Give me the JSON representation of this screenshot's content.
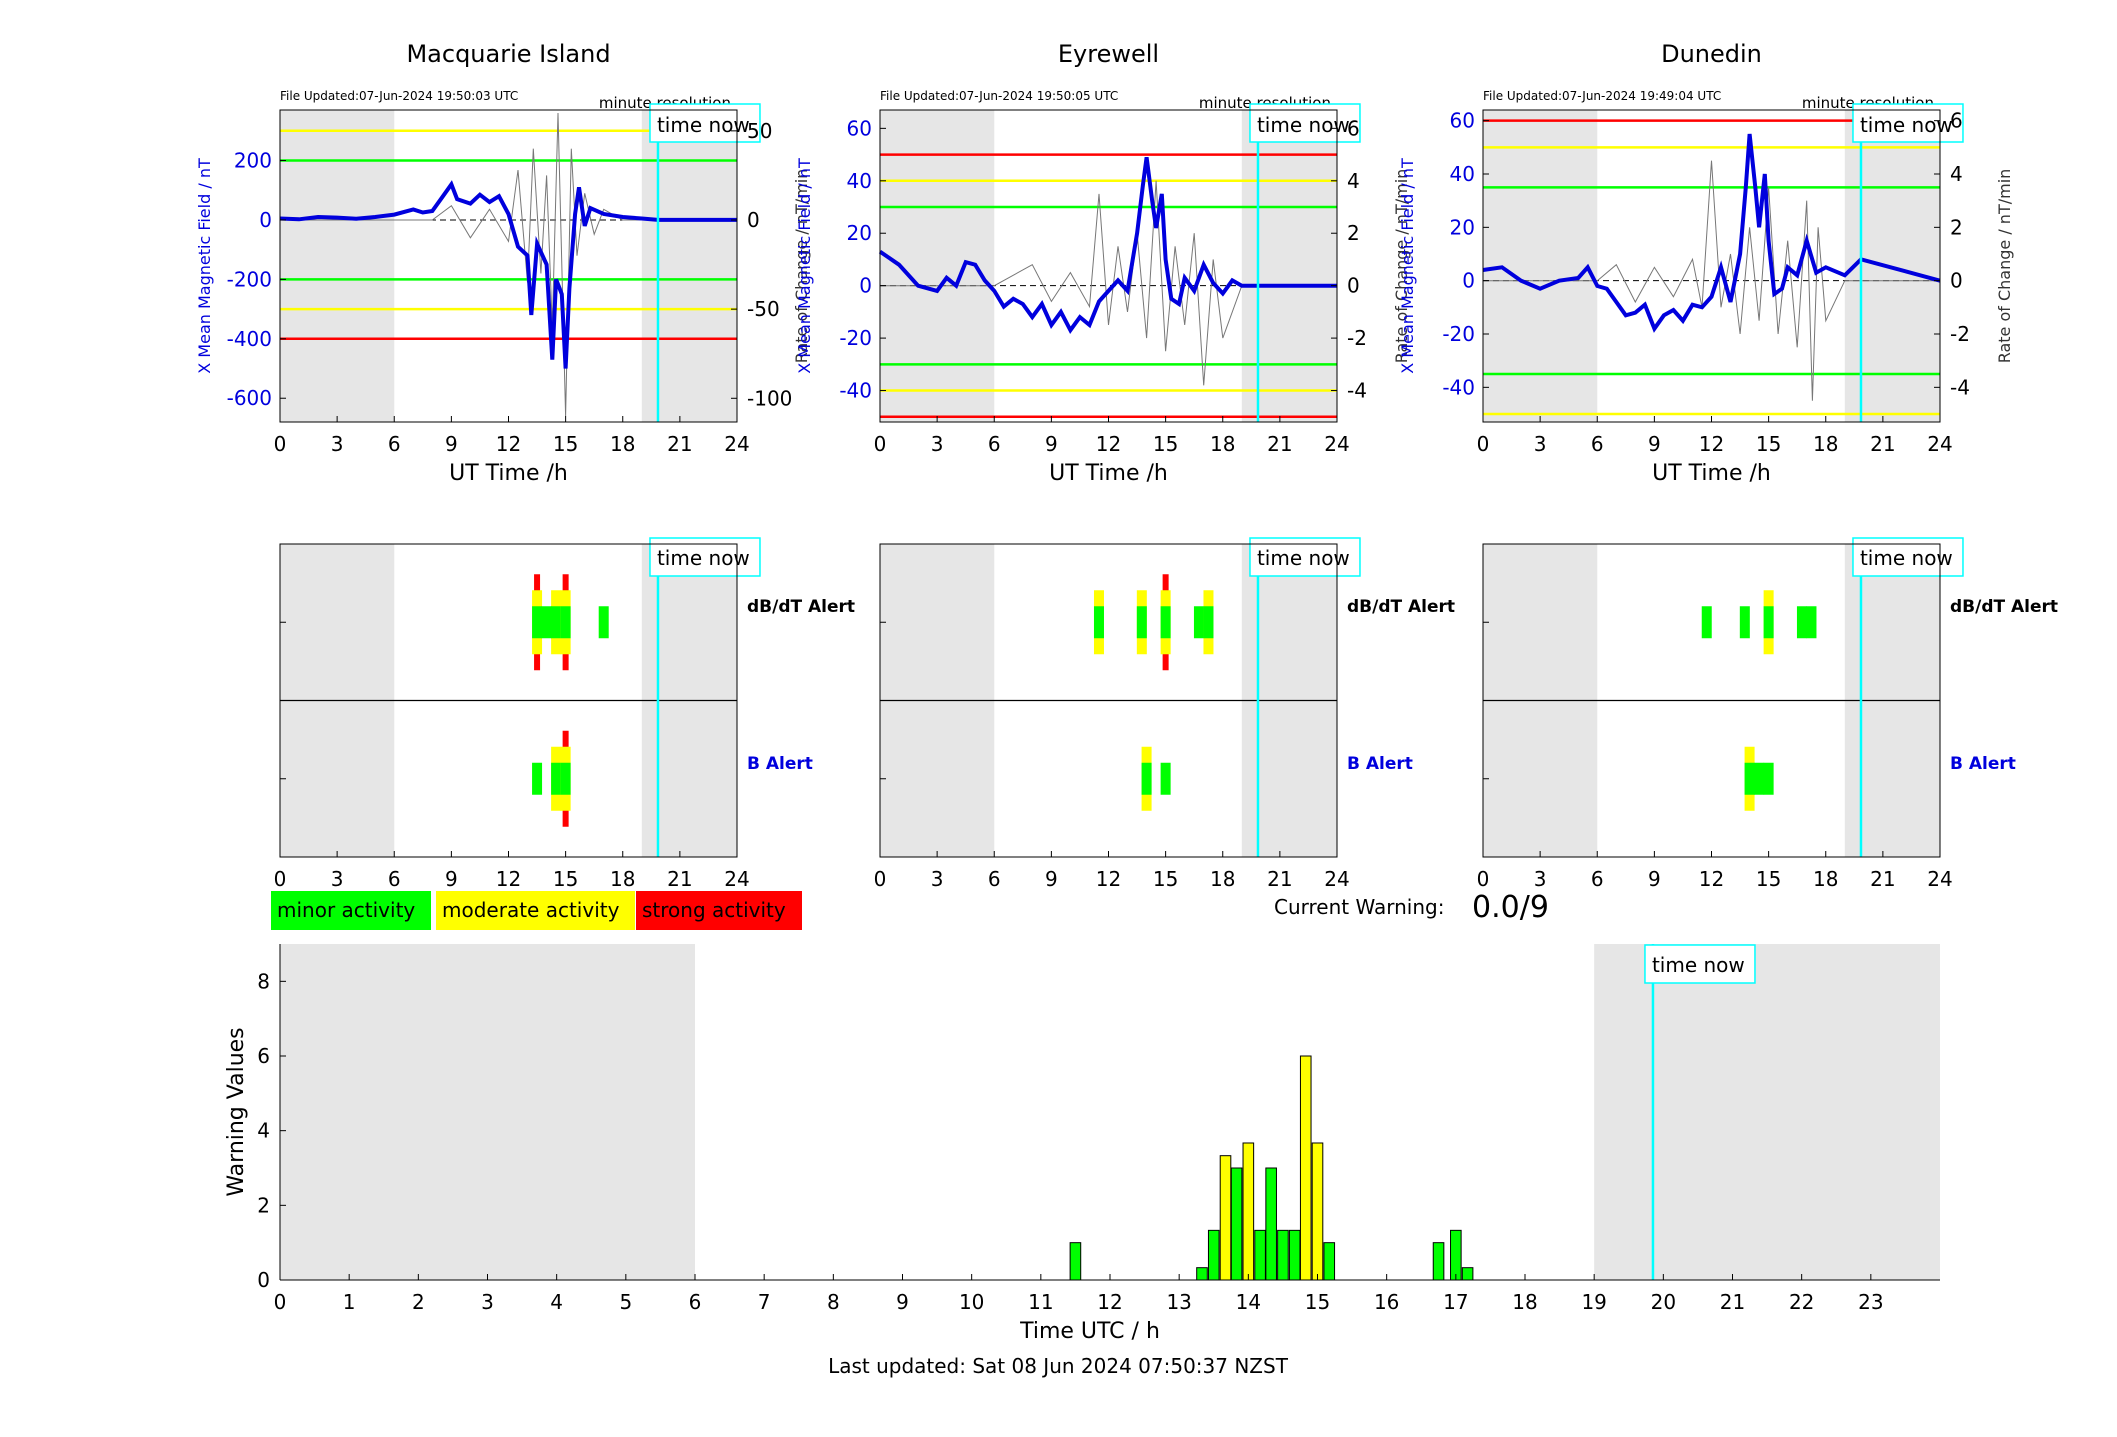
{
  "stations": [
    {
      "name": "Macquarie Island",
      "file_updated": "File Updated:07-Jun-2024 19:50:03 UTC",
      "resolution": "minute resolution",
      "time_now_label": "time now",
      "ylabel_left": "X Mean Magnetic Field / nT",
      "ylabel_right": "Rate of Change / nT/min",
      "xlabel": "UT Time /h",
      "ylim_left": [
        -680,
        370
      ],
      "ylim_right": [
        -113.3,
        61.7
      ],
      "yticks_left": [
        -600,
        -400,
        -200,
        0,
        200
      ],
      "yticks_right": [
        -100,
        -50,
        0,
        50
      ],
      "thresholds": [
        {
          "value": 300,
          "color": "#ffff00"
        },
        {
          "value": 200,
          "color": "#00ff00"
        },
        {
          "value": -200,
          "color": "#00ff00"
        },
        {
          "value": -300,
          "color": "#ffff00"
        },
        {
          "value": -400,
          "color": "#ff0000"
        }
      ],
      "field_series": [
        [
          0,
          5
        ],
        [
          1,
          2
        ],
        [
          2,
          10
        ],
        [
          3,
          8
        ],
        [
          4,
          4
        ],
        [
          5,
          10
        ],
        [
          6,
          18
        ],
        [
          7,
          35
        ],
        [
          7.5,
          25
        ],
        [
          8,
          30
        ],
        [
          8.5,
          75
        ],
        [
          9,
          120
        ],
        [
          9.3,
          70
        ],
        [
          10,
          55
        ],
        [
          10.5,
          85
        ],
        [
          11,
          60
        ],
        [
          11.5,
          80
        ],
        [
          12,
          20
        ],
        [
          12.5,
          -90
        ],
        [
          13,
          -120
        ],
        [
          13.2,
          -320
        ],
        [
          13.5,
          -80
        ],
        [
          14,
          -150
        ],
        [
          14.3,
          -470
        ],
        [
          14.5,
          -200
        ],
        [
          14.8,
          -250
        ],
        [
          15,
          -500
        ],
        [
          15.2,
          -230
        ],
        [
          15.5,
          20
        ],
        [
          15.7,
          110
        ],
        [
          16,
          -20
        ],
        [
          16.3,
          40
        ],
        [
          17,
          20
        ],
        [
          18,
          10
        ],
        [
          19,
          5
        ],
        [
          19.85,
          0
        ],
        [
          24,
          0
        ]
      ],
      "rate_series": [
        [
          0,
          0
        ],
        [
          8,
          0
        ],
        [
          9,
          8
        ],
        [
          10,
          -10
        ],
        [
          11,
          6
        ],
        [
          12,
          -12
        ],
        [
          12.5,
          28
        ],
        [
          13,
          -35
        ],
        [
          13.3,
          40
        ],
        [
          13.7,
          -30
        ],
        [
          14,
          25
        ],
        [
          14.3,
          -60
        ],
        [
          14.6,
          60
        ],
        [
          15,
          -110
        ],
        [
          15.3,
          40
        ],
        [
          15.6,
          -20
        ],
        [
          16,
          15
        ],
        [
          16.5,
          -8
        ],
        [
          17,
          6
        ],
        [
          18,
          0
        ],
        [
          24,
          0
        ]
      ],
      "alerts_dbdt": [
        {
          "t": 13.5,
          "level": "strong"
        },
        {
          "t": 14.5,
          "level": "moderate"
        },
        {
          "t": 14.0,
          "level": "minor"
        },
        {
          "t": 15.0,
          "level": "strong"
        },
        {
          "t": 17.0,
          "level": "minor"
        }
      ],
      "alerts_b": [
        {
          "t": 13.5,
          "level": "minor"
        },
        {
          "t": 14.5,
          "level": "moderate"
        },
        {
          "t": 15.0,
          "level": "strong"
        }
      ]
    },
    {
      "name": "Eyrewell",
      "file_updated": "File Updated:07-Jun-2024 19:50:05 UTC",
      "resolution": "minute resolution",
      "time_now_label": "time now",
      "ylabel_left": "X Mean Magnetic Field / nT",
      "ylabel_right": "Rate of Change / nT/min",
      "xlabel": "UT Time /h",
      "ylim_left": [
        -52,
        67
      ],
      "ylim_right": [
        -5.2,
        6.7
      ],
      "yticks_left": [
        -40,
        -20,
        0,
        20,
        40,
        60
      ],
      "yticks_right": [
        -4,
        -2,
        0,
        2,
        4,
        6
      ],
      "thresholds": [
        {
          "value": 50,
          "color": "#ff0000"
        },
        {
          "value": 40,
          "color": "#ffff00"
        },
        {
          "value": 30,
          "color": "#00ff00"
        },
        {
          "value": -30,
          "color": "#00ff00"
        },
        {
          "value": -40,
          "color": "#ffff00"
        },
        {
          "value": -50,
          "color": "#ff0000"
        }
      ],
      "field_series": [
        [
          0,
          13
        ],
        [
          1,
          8
        ],
        [
          2,
          0
        ],
        [
          3,
          -2
        ],
        [
          3.5,
          3
        ],
        [
          4,
          0
        ],
        [
          4.5,
          9
        ],
        [
          5,
          8
        ],
        [
          5.5,
          2
        ],
        [
          6,
          -2
        ],
        [
          6.5,
          -8
        ],
        [
          7,
          -5
        ],
        [
          7.5,
          -7
        ],
        [
          8,
          -12
        ],
        [
          8.5,
          -7
        ],
        [
          9,
          -15
        ],
        [
          9.5,
          -10
        ],
        [
          10,
          -17
        ],
        [
          10.5,
          -12
        ],
        [
          11,
          -15
        ],
        [
          11.5,
          -6
        ],
        [
          12,
          -2
        ],
        [
          12.5,
          2
        ],
        [
          13,
          -2
        ],
        [
          13.5,
          20
        ],
        [
          13.8,
          38
        ],
        [
          14,
          49
        ],
        [
          14.3,
          32
        ],
        [
          14.5,
          22
        ],
        [
          14.8,
          35
        ],
        [
          15,
          10
        ],
        [
          15.3,
          -5
        ],
        [
          15.7,
          -7
        ],
        [
          16,
          3
        ],
        [
          16.5,
          -2
        ],
        [
          17,
          8
        ],
        [
          17.5,
          1
        ],
        [
          18,
          -3
        ],
        [
          18.5,
          2
        ],
        [
          19,
          0
        ],
        [
          19.85,
          0
        ],
        [
          24,
          0
        ]
      ],
      "rate_series": [
        [
          0,
          0
        ],
        [
          6,
          0
        ],
        [
          8,
          0.8
        ],
        [
          9,
          -0.6
        ],
        [
          10,
          0.5
        ],
        [
          11,
          -0.8
        ],
        [
          11.5,
          3.5
        ],
        [
          12,
          -1.5
        ],
        [
          12.5,
          1.5
        ],
        [
          13,
          -1
        ],
        [
          13.5,
          2
        ],
        [
          14,
          -2
        ],
        [
          14.5,
          4
        ],
        [
          15,
          -2.5
        ],
        [
          15.5,
          1.5
        ],
        [
          16,
          -1.5
        ],
        [
          16.5,
          2
        ],
        [
          17,
          -3.8
        ],
        [
          17.5,
          1
        ],
        [
          18,
          -2
        ],
        [
          19,
          0
        ],
        [
          24,
          0
        ]
      ],
      "alerts_dbdt": [
        {
          "t": 11.5,
          "level": "moderate"
        },
        {
          "t": 13.75,
          "level": "moderate"
        },
        {
          "t": 15.0,
          "level": "strong"
        },
        {
          "t": 16.75,
          "level": "minor"
        },
        {
          "t": 17.25,
          "level": "moderate"
        }
      ],
      "alerts_b": [
        {
          "t": 14.0,
          "level": "moderate"
        },
        {
          "t": 15.0,
          "level": "minor"
        }
      ]
    },
    {
      "name": "Dunedin",
      "file_updated": "File Updated:07-Jun-2024 19:49:04 UTC",
      "resolution": "minute resolution",
      "time_now_label": "time now",
      "ylabel_left": "X Mean Magnetic Field / nT",
      "ylabel_right": "Rate of Change / nT/min",
      "xlabel": "UT Time /h",
      "ylim_left": [
        -53,
        64
      ],
      "ylim_right": [
        -5.3,
        6.4
      ],
      "yticks_left": [
        -40,
        -20,
        0,
        20,
        40,
        60
      ],
      "yticks_right": [
        -4,
        -2,
        0,
        2,
        4,
        6
      ],
      "thresholds": [
        {
          "value": 60,
          "color": "#ff0000"
        },
        {
          "value": 50,
          "color": "#ffff00"
        },
        {
          "value": 35,
          "color": "#00ff00"
        },
        {
          "value": -35,
          "color": "#00ff00"
        },
        {
          "value": -50,
          "color": "#ffff00"
        }
      ],
      "field_series": [
        [
          0,
          4
        ],
        [
          1,
          5
        ],
        [
          2,
          0
        ],
        [
          3,
          -3
        ],
        [
          4,
          0
        ],
        [
          5,
          1
        ],
        [
          5.5,
          5
        ],
        [
          6,
          -2
        ],
        [
          6.5,
          -3
        ],
        [
          7,
          -8
        ],
        [
          7.5,
          -13
        ],
        [
          8,
          -12
        ],
        [
          8.5,
          -9
        ],
        [
          9,
          -18
        ],
        [
          9.5,
          -13
        ],
        [
          10,
          -11
        ],
        [
          10.5,
          -15
        ],
        [
          11,
          -9
        ],
        [
          11.5,
          -10
        ],
        [
          12,
          -6
        ],
        [
          12.5,
          5
        ],
        [
          13,
          -8
        ],
        [
          13.5,
          10
        ],
        [
          13.8,
          35
        ],
        [
          14,
          55
        ],
        [
          14.3,
          35
        ],
        [
          14.5,
          20
        ],
        [
          14.8,
          40
        ],
        [
          15,
          15
        ],
        [
          15.3,
          -5
        ],
        [
          15.7,
          -3
        ],
        [
          16,
          5
        ],
        [
          16.5,
          2
        ],
        [
          17,
          15
        ],
        [
          17.5,
          3
        ],
        [
          18,
          5
        ],
        [
          19,
          2
        ],
        [
          19.85,
          8
        ],
        [
          24,
          0
        ]
      ],
      "rate_series": [
        [
          0,
          0
        ],
        [
          6,
          0
        ],
        [
          7,
          0.6
        ],
        [
          8,
          -0.8
        ],
        [
          9,
          0.5
        ],
        [
          10,
          -0.6
        ],
        [
          11,
          0.8
        ],
        [
          11.5,
          -1
        ],
        [
          12,
          4.5
        ],
        [
          12.5,
          -1
        ],
        [
          13,
          1
        ],
        [
          13.5,
          -2
        ],
        [
          14,
          2
        ],
        [
          14.5,
          -1.5
        ],
        [
          15,
          3.5
        ],
        [
          15.5,
          -2
        ],
        [
          16,
          1.5
        ],
        [
          16.5,
          -2.5
        ],
        [
          17,
          3
        ],
        [
          17.3,
          -4.5
        ],
        [
          17.6,
          2
        ],
        [
          18,
          -1.5
        ],
        [
          19,
          0
        ],
        [
          24,
          0
        ]
      ],
      "alerts_dbdt": [
        {
          "t": 11.75,
          "level": "minor"
        },
        {
          "t": 13.75,
          "level": "minor"
        },
        {
          "t": 15.0,
          "level": "moderate"
        },
        {
          "t": 16.75,
          "level": "minor"
        },
        {
          "t": 17.25,
          "level": "minor"
        }
      ],
      "alerts_b": [
        {
          "t": 14.0,
          "level": "moderate"
        },
        {
          "t": 14.5,
          "level": "minor"
        },
        {
          "t": 15.0,
          "level": "minor"
        }
      ]
    }
  ],
  "alert_labels": {
    "dbdt": "dB/dT Alert",
    "b": "B Alert"
  },
  "legend": {
    "minor": "minor activity",
    "moderate": "moderate activity",
    "strong": "strong activity"
  },
  "level_colors": {
    "minor": "#00ff00",
    "moderate": "#ffff00",
    "strong": "#ff0000",
    "now": "#00ffff"
  },
  "time_axis_ticks": [
    0,
    3,
    6,
    9,
    12,
    15,
    18,
    21,
    24
  ],
  "night_shade_hours": [
    [
      0,
      6
    ],
    [
      19,
      24
    ]
  ],
  "time_now_hour": 19.85,
  "current_warning": {
    "label": "Current Warning:",
    "value": "0.0/9"
  },
  "chart_data": {
    "type": "bar",
    "title": "",
    "xlabel": "Time UTC / h",
    "ylabel": "Warning Values",
    "xlim": [
      0,
      24
    ],
    "ylim": [
      0,
      9
    ],
    "xticks": [
      0,
      1,
      2,
      3,
      4,
      5,
      6,
      7,
      8,
      9,
      10,
      11,
      12,
      13,
      14,
      15,
      16,
      17,
      18,
      19,
      20,
      21,
      22,
      23
    ],
    "yticks": [
      0,
      2,
      4,
      6,
      8
    ],
    "time_now_label": "time now",
    "bars": [
      {
        "x": 11.5,
        "value": 1,
        "level": "minor"
      },
      {
        "x": 13.33,
        "value": 0.33,
        "level": "minor"
      },
      {
        "x": 13.5,
        "value": 1.33,
        "level": "minor"
      },
      {
        "x": 13.67,
        "value": 3.33,
        "level": "moderate"
      },
      {
        "x": 13.83,
        "value": 3,
        "level": "minor"
      },
      {
        "x": 14.0,
        "value": 3.67,
        "level": "moderate"
      },
      {
        "x": 14.17,
        "value": 1.33,
        "level": "minor"
      },
      {
        "x": 14.33,
        "value": 3,
        "level": "minor"
      },
      {
        "x": 14.5,
        "value": 1.33,
        "level": "minor"
      },
      {
        "x": 14.67,
        "value": 1.33,
        "level": "minor"
      },
      {
        "x": 14.83,
        "value": 6,
        "level": "moderate"
      },
      {
        "x": 15.0,
        "value": 3.67,
        "level": "moderate"
      },
      {
        "x": 15.17,
        "value": 1,
        "level": "minor"
      },
      {
        "x": 16.75,
        "value": 1,
        "level": "minor"
      },
      {
        "x": 17.0,
        "value": 1.33,
        "level": "minor"
      },
      {
        "x": 17.17,
        "value": 0.33,
        "level": "minor"
      }
    ]
  },
  "footer": "Last updated: Sat 08 Jun 2024 07:50:37 NZST"
}
